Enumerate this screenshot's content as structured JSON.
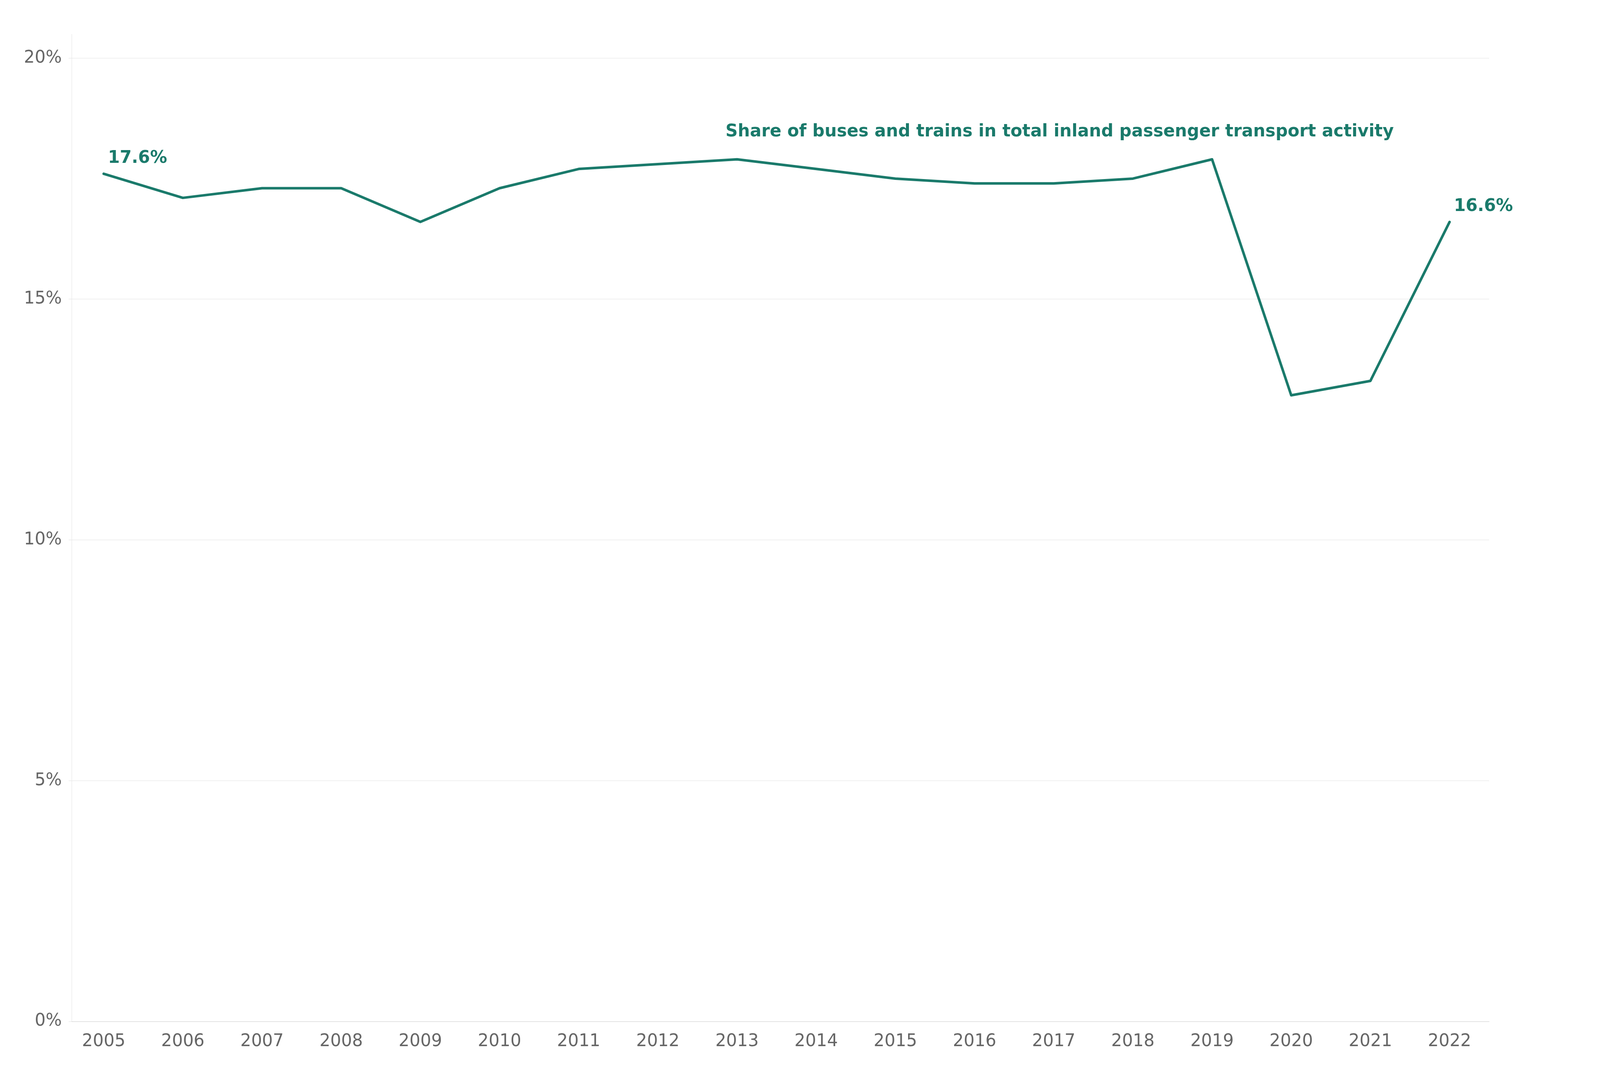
{
  "chart_data": {
    "type": "line",
    "x": [
      2005,
      2006,
      2007,
      2008,
      2009,
      2010,
      2011,
      2012,
      2013,
      2014,
      2015,
      2016,
      2017,
      2018,
      2019,
      2020,
      2021,
      2022
    ],
    "series": [
      {
        "name": "Share of buses and trains in total inland passenger transport activity",
        "color": "#1a7a6b",
        "values": [
          17.6,
          17.1,
          17.3,
          17.3,
          16.6,
          17.3,
          17.7,
          17.8,
          17.9,
          17.7,
          17.5,
          17.4,
          17.4,
          17.5,
          17.9,
          13.0,
          13.3,
          16.6
        ]
      }
    ],
    "xlim": [
      2004.6,
      2022.5
    ],
    "xticks": [
      2005,
      2006,
      2007,
      2008,
      2009,
      2010,
      2011,
      2012,
      2013,
      2014,
      2015,
      2016,
      2017,
      2018,
      2019,
      2020,
      2021,
      2022
    ],
    "ylim": [
      0,
      20.5
    ],
    "yticks": [
      {
        "value": 0,
        "label": "0%"
      },
      {
        "value": 5,
        "label": "5%"
      },
      {
        "value": 10,
        "label": "10%"
      },
      {
        "value": 15,
        "label": "15%"
      },
      {
        "value": 20,
        "label": "20%"
      }
    ],
    "grid": "y",
    "annotations": [
      {
        "text": "17.6%",
        "x": 2005,
        "y": 17.6
      },
      {
        "text": "16.6%",
        "x": 2022,
        "y": 16.6
      },
      {
        "text": "Share of buses and trains in total inland passenger transport activity",
        "x": 2012.8,
        "y": 18.15
      }
    ]
  }
}
